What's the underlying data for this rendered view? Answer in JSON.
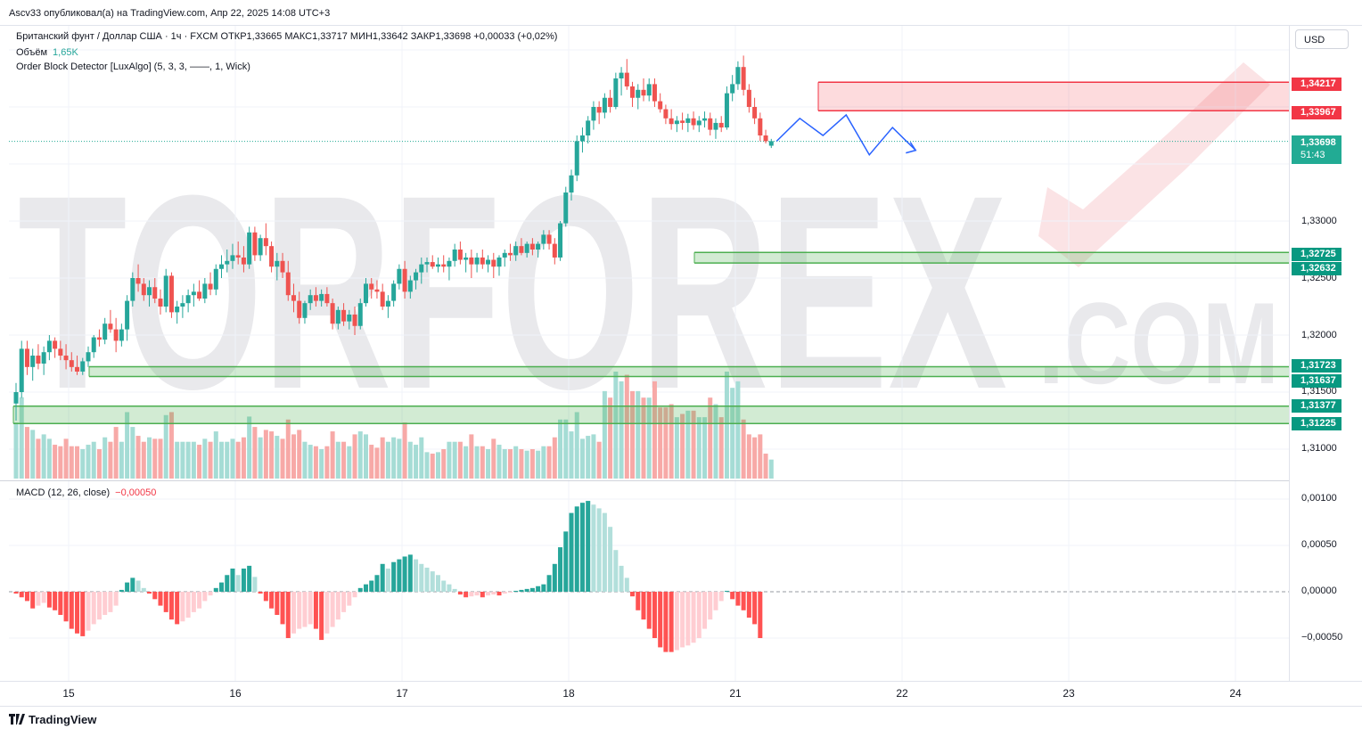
{
  "header": {
    "publisher_line": "Ascv33 опубликовал(а) на TradingView.com, Апр 22, 2025 14:08 UTC+3"
  },
  "legend": {
    "symbol_line": "Британский фунт / Доллар США · 1ч · FXCM  ОТКР1,33665  МАКС1,33717  МИН1,33642  ЗАКР1,33698  +0,00033 (+0,02%)",
    "volume_label": "Объём",
    "volume_value": "1,65K",
    "indicator_line": "Order Block Detector [LuxAlgo] (5, 3, 3, ——, 1, Wick)",
    "macd_label": "MACD (12, 26, close)",
    "macd_value": "−0,00050"
  },
  "currency_button": "USD",
  "price_axis": {
    "labels": [
      "1,33000",
      "1,32500",
      "1,32000",
      "1,31500",
      "1,31000"
    ],
    "current_price": "1,33698",
    "countdown": "51:43"
  },
  "order_blocks": {
    "bearish": [
      {
        "top": "1,34217",
        "bottom": "1,33967"
      }
    ],
    "bullish": [
      {
        "top": "1,32725",
        "bottom": "1,32632"
      },
      {
        "top": "1,31723",
        "bottom": "1,31637"
      },
      {
        "top": "1,31377",
        "bottom": "1,31225"
      }
    ]
  },
  "macd_axis": {
    "labels": [
      "0,00100",
      "0,00050",
      "0,00000",
      "−0,00050"
    ]
  },
  "time_axis": {
    "labels": [
      "15",
      "16",
      "17",
      "18",
      "21",
      "22",
      "23",
      "24"
    ]
  },
  "watermark": {
    "text": "TORFOREX",
    "suffix": ".COM"
  },
  "footer": {
    "brand": "TradingView"
  },
  "colors": {
    "up": "#26a69a",
    "down": "#ef5350",
    "bear_block": "#f23645",
    "bull_block": "#4caf50",
    "forecast": "#2962ff"
  },
  "chart_data": {
    "type": "candlestick",
    "symbol": "GBPUSD",
    "timeframe": "1h",
    "ohlc_columns": [
      "open",
      "high",
      "low",
      "close"
    ],
    "candles": [
      [
        1.314,
        1.3158,
        1.3125,
        1.315
      ],
      [
        1.315,
        1.3195,
        1.3145,
        1.3188
      ],
      [
        1.3188,
        1.3195,
        1.3165,
        1.3172
      ],
      [
        1.3172,
        1.3188,
        1.316,
        1.3182
      ],
      [
        1.3182,
        1.3192,
        1.317,
        1.3175
      ],
      [
        1.3175,
        1.319,
        1.3165,
        1.3185
      ],
      [
        1.3185,
        1.32,
        1.3178,
        1.3195
      ],
      [
        1.3195,
        1.3198,
        1.318,
        1.3188
      ],
      [
        1.3188,
        1.3195,
        1.3178,
        1.3182
      ],
      [
        1.3182,
        1.3192,
        1.317,
        1.3178
      ],
      [
        1.3178,
        1.3185,
        1.3168,
        1.3172
      ],
      [
        1.3172,
        1.3182,
        1.3165,
        1.3168
      ],
      [
        1.3168,
        1.318,
        1.3165,
        1.3177
      ],
      [
        1.3177,
        1.319,
        1.3172,
        1.3185
      ],
      [
        1.3185,
        1.32,
        1.318,
        1.3198
      ],
      [
        1.3198,
        1.3205,
        1.319,
        1.3196
      ],
      [
        1.3196,
        1.3215,
        1.3192,
        1.321
      ],
      [
        1.321,
        1.3222,
        1.3202,
        1.3205
      ],
      [
        1.3205,
        1.3215,
        1.3185,
        1.3195
      ],
      [
        1.3195,
        1.321,
        1.319,
        1.3205
      ],
      [
        1.3205,
        1.3235,
        1.3195,
        1.323
      ],
      [
        1.323,
        1.3255,
        1.3225,
        1.325
      ],
      [
        1.325,
        1.3262,
        1.3238,
        1.3245
      ],
      [
        1.3245,
        1.325,
        1.323,
        1.3235
      ],
      [
        1.3235,
        1.3248,
        1.3225,
        1.3242
      ],
      [
        1.3242,
        1.325,
        1.3228,
        1.3232
      ],
      [
        1.3232,
        1.324,
        1.3218,
        1.3225
      ],
      [
        1.3225,
        1.3258,
        1.322,
        1.3252
      ],
      [
        1.3252,
        1.3255,
        1.3215,
        1.322
      ],
      [
        1.322,
        1.323,
        1.321,
        1.3225
      ],
      [
        1.3225,
        1.3235,
        1.3215,
        1.3228
      ],
      [
        1.3228,
        1.324,
        1.322,
        1.3235
      ],
      [
        1.3235,
        1.3245,
        1.3225,
        1.3238
      ],
      [
        1.3238,
        1.3248,
        1.323,
        1.3232
      ],
      [
        1.3232,
        1.325,
        1.3228,
        1.3245
      ],
      [
        1.3245,
        1.3255,
        1.3235,
        1.324
      ],
      [
        1.324,
        1.3262,
        1.3235,
        1.3258
      ],
      [
        1.3258,
        1.327,
        1.325,
        1.3262
      ],
      [
        1.3262,
        1.3275,
        1.3255,
        1.3265
      ],
      [
        1.3265,
        1.328,
        1.3258,
        1.327
      ],
      [
        1.327,
        1.3282,
        1.3262,
        1.3268
      ],
      [
        1.3268,
        1.3278,
        1.3255,
        1.3262
      ],
      [
        1.3262,
        1.3295,
        1.3258,
        1.329
      ],
      [
        1.329,
        1.3295,
        1.3265,
        1.327
      ],
      [
        1.327,
        1.3288,
        1.3265,
        1.3285
      ],
      [
        1.3285,
        1.3298,
        1.327,
        1.3278
      ],
      [
        1.3278,
        1.3282,
        1.3255,
        1.326
      ],
      [
        1.326,
        1.3272,
        1.3248,
        1.3265
      ],
      [
        1.3265,
        1.3272,
        1.325,
        1.3255
      ],
      [
        1.3255,
        1.3265,
        1.323,
        1.3235
      ],
      [
        1.3235,
        1.3245,
        1.322,
        1.323
      ],
      [
        1.323,
        1.3238,
        1.321,
        1.3215
      ],
      [
        1.3215,
        1.323,
        1.321,
        1.3228
      ],
      [
        1.3228,
        1.324,
        1.3222,
        1.3235
      ],
      [
        1.3235,
        1.3242,
        1.3225,
        1.323
      ],
      [
        1.323,
        1.324,
        1.3225,
        1.3236
      ],
      [
        1.3236,
        1.3242,
        1.3225,
        1.3228
      ],
      [
        1.3228,
        1.3232,
        1.3205,
        1.321
      ],
      [
        1.321,
        1.3225,
        1.3205,
        1.3222
      ],
      [
        1.3222,
        1.3228,
        1.3208,
        1.3212
      ],
      [
        1.3212,
        1.3222,
        1.3205,
        1.3218
      ],
      [
        1.3218,
        1.3225,
        1.32,
        1.3208
      ],
      [
        1.3208,
        1.3232,
        1.3205,
        1.3228
      ],
      [
        1.3228,
        1.325,
        1.3225,
        1.3245
      ],
      [
        1.3245,
        1.325,
        1.3232,
        1.324
      ],
      [
        1.324,
        1.3248,
        1.3232,
        1.3238
      ],
      [
        1.3238,
        1.3245,
        1.3222,
        1.3225
      ],
      [
        1.3225,
        1.3235,
        1.3215,
        1.323
      ],
      [
        1.323,
        1.3248,
        1.3225,
        1.3245
      ],
      [
        1.3245,
        1.3262,
        1.324,
        1.3258
      ],
      [
        1.3258,
        1.3265,
        1.3232,
        1.3238
      ],
      [
        1.3238,
        1.3252,
        1.3232,
        1.3248
      ],
      [
        1.3248,
        1.3258,
        1.324,
        1.3255
      ],
      [
        1.3255,
        1.3268,
        1.3245,
        1.3262
      ],
      [
        1.3262,
        1.3268,
        1.3255,
        1.3264
      ],
      [
        1.3264,
        1.327,
        1.3258,
        1.326
      ],
      [
        1.326,
        1.3268,
        1.3255,
        1.3262
      ],
      [
        1.3262,
        1.327,
        1.3255,
        1.326
      ],
      [
        1.326,
        1.3268,
        1.3248,
        1.3265
      ],
      [
        1.3265,
        1.328,
        1.326,
        1.3275
      ],
      [
        1.3275,
        1.3282,
        1.3262,
        1.3266
      ],
      [
        1.3266,
        1.3272,
        1.3255,
        1.3268
      ],
      [
        1.3268,
        1.3275,
        1.325,
        1.3262
      ],
      [
        1.3262,
        1.3272,
        1.3255,
        1.3268
      ],
      [
        1.3268,
        1.3275,
        1.3258,
        1.3262
      ],
      [
        1.3262,
        1.327,
        1.3255,
        1.3266
      ],
      [
        1.3266,
        1.3272,
        1.325,
        1.326
      ],
      [
        1.326,
        1.327,
        1.3252,
        1.3268
      ],
      [
        1.3268,
        1.3275,
        1.326,
        1.3272
      ],
      [
        1.3272,
        1.328,
        1.3265,
        1.327
      ],
      [
        1.327,
        1.3282,
        1.3265,
        1.3278
      ],
      [
        1.3278,
        1.3285,
        1.327,
        1.3272
      ],
      [
        1.3272,
        1.3282,
        1.3268,
        1.328
      ],
      [
        1.328,
        1.3285,
        1.327,
        1.3275
      ],
      [
        1.3275,
        1.3282,
        1.3268,
        1.328
      ],
      [
        1.328,
        1.3292,
        1.3275,
        1.3288
      ],
      [
        1.3288,
        1.3292,
        1.3275,
        1.328
      ],
      [
        1.328,
        1.3285,
        1.3262,
        1.3268
      ],
      [
        1.3268,
        1.33,
        1.3265,
        1.3298
      ],
      [
        1.3298,
        1.333,
        1.3295,
        1.3325
      ],
      [
        1.3325,
        1.3345,
        1.3318,
        1.334
      ],
      [
        1.334,
        1.3375,
        1.3335,
        1.337
      ],
      [
        1.337,
        1.3382,
        1.336,
        1.3375
      ],
      [
        1.3375,
        1.3392,
        1.3368,
        1.3388
      ],
      [
        1.3388,
        1.3405,
        1.338,
        1.34
      ],
      [
        1.34,
        1.3405,
        1.3385,
        1.3395
      ],
      [
        1.3395,
        1.3412,
        1.339,
        1.3408
      ],
      [
        1.3408,
        1.3415,
        1.3395,
        1.34
      ],
      [
        1.34,
        1.343,
        1.3398,
        1.3425
      ],
      [
        1.3425,
        1.3435,
        1.341,
        1.343
      ],
      [
        1.343,
        1.3442,
        1.3415,
        1.3418
      ],
      [
        1.3418,
        1.3422,
        1.34,
        1.3408
      ],
      [
        1.3408,
        1.342,
        1.3398,
        1.3415
      ],
      [
        1.3415,
        1.3425,
        1.3405,
        1.341
      ],
      [
        1.341,
        1.3425,
        1.3405,
        1.342
      ],
      [
        1.342,
        1.3425,
        1.34,
        1.3405
      ],
      [
        1.3405,
        1.3412,
        1.3395,
        1.3398
      ],
      [
        1.3398,
        1.3402,
        1.3385,
        1.339
      ],
      [
        1.339,
        1.3398,
        1.338,
        1.3385
      ],
      [
        1.3385,
        1.3392,
        1.3378,
        1.3388
      ],
      [
        1.3388,
        1.3395,
        1.338,
        1.3386
      ],
      [
        1.3386,
        1.3394,
        1.3378,
        1.339
      ],
      [
        1.339,
        1.3396,
        1.338,
        1.3384
      ],
      [
        1.3384,
        1.3392,
        1.3378,
        1.3388
      ],
      [
        1.3388,
        1.3396,
        1.3382,
        1.339
      ],
      [
        1.339,
        1.3395,
        1.3375,
        1.338
      ],
      [
        1.338,
        1.339,
        1.3372,
        1.3386
      ],
      [
        1.3386,
        1.3392,
        1.3378,
        1.3382
      ],
      [
        1.3382,
        1.3418,
        1.338,
        1.3412
      ],
      [
        1.3412,
        1.3428,
        1.3405,
        1.342
      ],
      [
        1.342,
        1.344,
        1.3415,
        1.3435
      ],
      [
        1.3435,
        1.3445,
        1.341,
        1.3415
      ],
      [
        1.3415,
        1.342,
        1.3395,
        1.34
      ],
      [
        1.34,
        1.3408,
        1.3385,
        1.339
      ],
      [
        1.339,
        1.3395,
        1.337,
        1.3375
      ],
      [
        1.3375,
        1.338,
        1.3368,
        1.337
      ],
      [
        1.3366,
        1.3372,
        1.3364,
        1.337
      ]
    ],
    "volume_label_value": "1,65K",
    "order_blocks": [
      {
        "kind": "bearish",
        "top": 1.34217,
        "bottom": 1.33967
      },
      {
        "kind": "bullish",
        "top": 1.32725,
        "bottom": 1.32632
      },
      {
        "kind": "bullish",
        "top": 1.31723,
        "bottom": 1.31637
      },
      {
        "kind": "bullish",
        "top": 1.31377,
        "bottom": 1.31225
      }
    ],
    "current_price": 1.33698,
    "forecast_path": [
      1.337,
      1.339,
      1.3375,
      1.3393,
      1.3358,
      1.3382,
      1.3362
    ],
    "macd_histogram": [
      -2e-05,
      -6e-05,
      -0.0001,
      -0.00018,
      -0.00015,
      -0.00012,
      -0.00017,
      -0.0002,
      -0.00025,
      -0.00032,
      -0.0004,
      -0.00045,
      -0.00048,
      -0.00042,
      -0.00035,
      -0.0003,
      -0.00025,
      -0.00022,
      -0.00015,
      2e-05,
      0.0001,
      0.00015,
      0.00012,
      4e-05,
      -2e-05,
      -8e-05,
      -0.00015,
      -0.00022,
      -0.0003,
      -0.00035,
      -0.00032,
      -0.00028,
      -0.00022,
      -0.00018,
      -0.0001,
      -4e-05,
      4e-05,
      0.0001,
      0.00018,
      0.00025,
      0.00018,
      0.00025,
      0.00028,
      0.00016,
      -2e-05,
      -0.0001,
      -0.00018,
      -0.00025,
      -0.00035,
      -0.0005,
      -0.00045,
      -0.0004,
      -0.00038,
      -0.00035,
      -0.0004,
      -0.00052,
      -0.00045,
      -0.00038,
      -0.0003,
      -0.00022,
      -0.00015,
      -6e-05,
      4e-05,
      8e-05,
      0.00012,
      0.00018,
      0.0003,
      0.00025,
      0.00032,
      0.00035,
      0.00038,
      0.0004,
      0.00035,
      0.0003,
      0.00026,
      0.00022,
      0.00018,
      0.00012,
      8e-05,
      3e-05,
      -3e-05,
      -6e-05,
      -5e-05,
      -4e-05,
      -6e-05,
      -4e-05,
      -3e-05,
      -4e-05,
      -2e-05,
      -1e-05,
      1e-05,
      2e-05,
      3e-05,
      4e-05,
      6e-05,
      8e-05,
      0.00018,
      0.0003,
      0.00048,
      0.00065,
      0.00085,
      0.00092,
      0.00096,
      0.00098,
      0.00094,
      0.0009,
      0.00085,
      0.0007,
      0.00045,
      0.00028,
      0.00015,
      -5e-05,
      -0.0002,
      -0.0003,
      -0.0004,
      -0.0005,
      -0.0006,
      -0.00065,
      -0.00065,
      -0.00063,
      -0.0006,
      -0.00058,
      -0.00055,
      -0.0005,
      -0.0004,
      -0.0003,
      -0.0002,
      -0.0001,
      1e-05,
      -8e-05,
      -0.00015,
      -0.0002,
      -0.00028,
      -0.00035,
      -0.0005
    ]
  }
}
